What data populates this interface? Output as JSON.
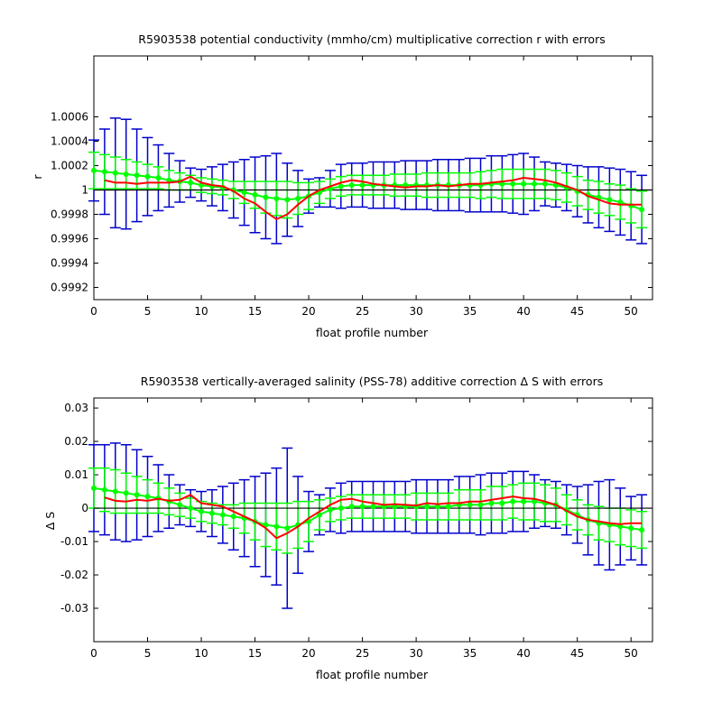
{
  "chart_data": [
    {
      "type": "line",
      "title": "R5903538 potential conductivity (mmho/cm) multiplicative correction r with errors",
      "xlabel": "float profile number",
      "ylabel": "r",
      "xlim": [
        0,
        52
      ],
      "ylim": [
        0.9991,
        1.0011
      ],
      "xticks": [
        0,
        5,
        10,
        15,
        20,
        25,
        30,
        35,
        40,
        45,
        50
      ],
      "xtick_labels": [
        "0",
        "5",
        "10",
        "15",
        "20",
        "25",
        "30",
        "35",
        "40",
        "45",
        "50"
      ],
      "yticks": [
        0.9992,
        0.9994,
        0.9996,
        0.9998,
        1.0,
        1.0002,
        1.0004,
        1.0006
      ],
      "ytick_labels": [
        "0.9992",
        "0.9994",
        "0.9996",
        "0.9998",
        "1",
        "1.0002",
        "1.0004",
        "1.0006"
      ],
      "reference_line": 1.0,
      "colors": {
        "fit": "#00ff00",
        "fit_error": "#00ff00",
        "total_error": "#0000cc",
        "estimate": "#ff0000",
        "reference": "#000000"
      },
      "x": [
        0,
        1,
        2,
        3,
        4,
        5,
        6,
        7,
        8,
        9,
        10,
        11,
        12,
        13,
        14,
        15,
        16,
        17,
        18,
        19,
        20,
        21,
        22,
        23,
        24,
        25,
        26,
        27,
        28,
        29,
        30,
        31,
        32,
        33,
        34,
        35,
        36,
        37,
        38,
        39,
        40,
        41,
        42,
        43,
        44,
        45,
        46,
        47,
        48,
        49,
        50,
        51
      ],
      "series": [
        {
          "role": "fit",
          "values": [
            1.00016,
            1.00015,
            1.00014,
            1.00013,
            1.00012,
            1.00011,
            1.0001,
            1.00008,
            1.00007,
            1.00006,
            1.00004,
            1.00003,
            1.00002,
            1.0,
            0.99998,
            0.99996,
            0.99994,
            0.99993,
            0.99992,
            0.99993,
            0.99995,
            0.99998,
            1.00001,
            1.00003,
            1.00004,
            1.00004,
            1.00004,
            1.00004,
            1.00004,
            1.00004,
            1.00004,
            1.00004,
            1.00004,
            1.00004,
            1.00004,
            1.00004,
            1.00004,
            1.00005,
            1.00005,
            1.00005,
            1.00005,
            1.00005,
            1.00005,
            1.00004,
            1.00002,
            0.99999,
            0.99996,
            0.99994,
            0.99992,
            0.9999,
            0.99987,
            0.99984
          ]
        },
        {
          "role": "fit_error",
          "values": [
            0.00015,
            0.00014,
            0.00013,
            0.00012,
            0.00011,
            0.0001,
            9e-05,
            8e-05,
            7e-05,
            6e-05,
            6e-05,
            6e-05,
            6e-05,
            7e-05,
            9e-05,
            0.00011,
            0.00013,
            0.00014,
            0.00015,
            0.00013,
            0.00011,
            9e-05,
            8e-05,
            8e-05,
            8e-05,
            8e-05,
            8e-05,
            8e-05,
            9e-05,
            9e-05,
            9e-05,
            0.0001,
            0.0001,
            0.0001,
            0.0001,
            0.0001,
            0.00011,
            0.00011,
            0.00012,
            0.00012,
            0.00012,
            0.00012,
            0.00012,
            0.00012,
            0.00012,
            0.00012,
            0.00012,
            0.00013,
            0.00013,
            0.00014,
            0.00014,
            0.00015
          ]
        },
        {
          "role": "total_error",
          "values": [
            0.00025,
            0.00035,
            0.00045,
            0.00045,
            0.00038,
            0.00032,
            0.00027,
            0.00022,
            0.00017,
            0.00012,
            0.00013,
            0.00016,
            0.00019,
            0.00023,
            0.00027,
            0.00031,
            0.00034,
            0.00037,
            0.0003,
            0.00023,
            0.00014,
            0.00012,
            0.00015,
            0.00018,
            0.00018,
            0.00018,
            0.00019,
            0.00019,
            0.00019,
            0.0002,
            0.0002,
            0.0002,
            0.00021,
            0.00021,
            0.00021,
            0.00022,
            0.00022,
            0.00023,
            0.00023,
            0.00024,
            0.00025,
            0.00022,
            0.00018,
            0.00018,
            0.00019,
            0.00021,
            0.00023,
            0.00025,
            0.00026,
            0.00027,
            0.00028,
            0.00028
          ]
        },
        {
          "role": "estimate",
          "values": [
            null,
            1.00008,
            1.00006,
            1.00006,
            1.00005,
            1.00006,
            1.00006,
            1.00006,
            1.00007,
            1.00011,
            1.00006,
            1.00004,
            1.00003,
            0.99999,
            0.99993,
            0.99989,
            0.99982,
            0.99976,
            0.9998,
            0.99988,
            0.99995,
            1.0,
            1.00003,
            1.00006,
            1.00008,
            1.00007,
            1.00005,
            1.00004,
            1.00003,
            1.00002,
            1.00003,
            1.00003,
            1.00004,
            1.00003,
            1.00004,
            1.00005,
            1.00005,
            1.00006,
            1.00007,
            1.00008,
            1.0001,
            1.00009,
            1.00008,
            1.00006,
            1.00003,
            1.0,
            0.99995,
            0.99992,
            0.99989,
            0.99988,
            0.99988,
            0.99988
          ]
        }
      ]
    },
    {
      "type": "line",
      "title": "R5903538 vertically-averaged salinity (PSS-78) additive correction Δ S with errors",
      "xlabel": "float profile number",
      "ylabel": "Δ S",
      "xlim": [
        0,
        52
      ],
      "ylim": [
        -0.04,
        0.033
      ],
      "xticks": [
        0,
        5,
        10,
        15,
        20,
        25,
        30,
        35,
        40,
        45,
        50
      ],
      "xtick_labels": [
        "0",
        "5",
        "10",
        "15",
        "20",
        "25",
        "30",
        "35",
        "40",
        "45",
        "50"
      ],
      "yticks": [
        -0.03,
        -0.02,
        -0.01,
        0,
        0.01,
        0.02,
        0.03
      ],
      "ytick_labels": [
        "-0.03",
        "-0.02",
        "-0.01",
        "0",
        "0.01",
        "0.02",
        "0.03"
      ],
      "reference_line": 0,
      "colors": {
        "fit": "#00ff00",
        "fit_error": "#00ff00",
        "total_error": "#0000cc",
        "estimate": "#ff0000",
        "reference": "#000000"
      },
      "x": [
        0,
        1,
        2,
        3,
        4,
        5,
        6,
        7,
        8,
        9,
        10,
        11,
        12,
        13,
        14,
        15,
        16,
        17,
        18,
        19,
        20,
        21,
        22,
        23,
        24,
        25,
        26,
        27,
        28,
        29,
        30,
        31,
        32,
        33,
        34,
        35,
        36,
        37,
        38,
        39,
        40,
        41,
        42,
        43,
        44,
        45,
        46,
        47,
        48,
        49,
        50,
        51
      ],
      "series": [
        {
          "role": "fit",
          "values": [
            0.006,
            0.0055,
            0.005,
            0.0045,
            0.004,
            0.0035,
            0.003,
            0.002,
            0.001,
            0.0,
            -0.001,
            -0.0015,
            -0.002,
            -0.0025,
            -0.003,
            -0.004,
            -0.005,
            -0.0055,
            -0.006,
            -0.005,
            -0.004,
            -0.002,
            -0.0005,
            0.0,
            0.0005,
            0.0005,
            0.0005,
            0.0005,
            0.0005,
            0.0005,
            0.0005,
            0.0005,
            0.0005,
            0.0005,
            0.001,
            0.001,
            0.001,
            0.0015,
            0.0015,
            0.002,
            0.002,
            0.002,
            0.0015,
            0.001,
            -0.0005,
            -0.002,
            -0.0035,
            -0.0045,
            -0.005,
            -0.0055,
            -0.006,
            -0.0065
          ]
        },
        {
          "role": "fit_error",
          "values": [
            0.006,
            0.0065,
            0.0065,
            0.006,
            0.0055,
            0.005,
            0.0045,
            0.004,
            0.0035,
            0.003,
            0.003,
            0.003,
            0.003,
            0.0035,
            0.0045,
            0.0055,
            0.0065,
            0.007,
            0.0075,
            0.007,
            0.006,
            0.0045,
            0.0035,
            0.0035,
            0.0035,
            0.0035,
            0.0035,
            0.0035,
            0.0035,
            0.0035,
            0.004,
            0.004,
            0.004,
            0.004,
            0.0045,
            0.0045,
            0.0045,
            0.005,
            0.005,
            0.005,
            0.0055,
            0.0055,
            0.0055,
            0.005,
            0.0045,
            0.0045,
            0.0045,
            0.005,
            0.005,
            0.0055,
            0.0055,
            0.0055
          ]
        },
        {
          "role": "total_error",
          "values": [
            0.013,
            0.0135,
            0.0145,
            0.0145,
            0.0135,
            0.012,
            0.01,
            0.008,
            0.006,
            0.0055,
            0.006,
            0.007,
            0.0085,
            0.01,
            0.0115,
            0.0135,
            0.0155,
            0.0175,
            0.024,
            0.0145,
            0.009,
            0.006,
            0.0065,
            0.0075,
            0.0075,
            0.0075,
            0.0075,
            0.0075,
            0.0075,
            0.0075,
            0.008,
            0.008,
            0.008,
            0.008,
            0.0085,
            0.0085,
            0.009,
            0.009,
            0.009,
            0.009,
            0.009,
            0.008,
            0.007,
            0.007,
            0.0075,
            0.0085,
            0.0105,
            0.0125,
            0.0135,
            0.0115,
            0.0095,
            0.0105
          ]
        },
        {
          "role": "estimate",
          "values": [
            null,
            0.0032,
            0.0022,
            0.002,
            0.0025,
            0.0022,
            0.0028,
            0.0022,
            0.0025,
            0.004,
            0.0015,
            0.001,
            0.0005,
            -0.001,
            -0.0025,
            -0.004,
            -0.006,
            -0.009,
            -0.0075,
            -0.0055,
            -0.003,
            -0.001,
            0.001,
            0.0025,
            0.0028,
            0.002,
            0.0015,
            0.001,
            0.0012,
            0.001,
            0.0008,
            0.0015,
            0.0012,
            0.0015,
            0.0015,
            0.002,
            0.002,
            0.0025,
            0.003,
            0.0035,
            0.003,
            0.0028,
            0.002,
            0.001,
            -0.0008,
            -0.0025,
            -0.0035,
            -0.004,
            -0.0045,
            -0.0048,
            -0.0045,
            -0.0045
          ]
        }
      ]
    }
  ]
}
